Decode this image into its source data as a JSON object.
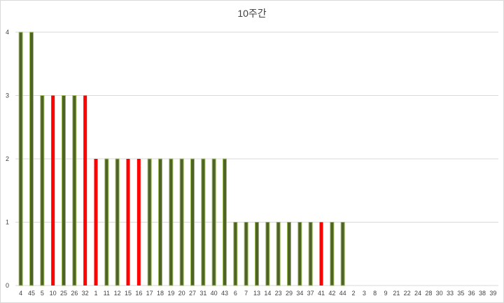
{
  "chart_data": {
    "type": "bar",
    "title": "10주간",
    "xlabel": "",
    "ylabel": "",
    "ylim": [
      0,
      4
    ],
    "yticks": [
      0,
      1,
      2,
      3,
      4
    ],
    "grid": true,
    "categories": [
      "4",
      "45",
      "5",
      "10",
      "25",
      "26",
      "32",
      "1",
      "11",
      "12",
      "15",
      "16",
      "17",
      "18",
      "19",
      "20",
      "27",
      "31",
      "40",
      "43",
      "6",
      "7",
      "13",
      "14",
      "23",
      "29",
      "34",
      "37",
      "41",
      "42",
      "44",
      "2",
      "3",
      "8",
      "9",
      "21",
      "22",
      "24",
      "28",
      "30",
      "33",
      "35",
      "36",
      "38",
      "39"
    ],
    "values": [
      4,
      4,
      3,
      3,
      3,
      3,
      3,
      2,
      2,
      2,
      2,
      2,
      2,
      2,
      2,
      2,
      2,
      2,
      2,
      2,
      1,
      1,
      1,
      1,
      1,
      1,
      1,
      1,
      1,
      1,
      1,
      0,
      0,
      0,
      0,
      0,
      0,
      0,
      0,
      0,
      0,
      0,
      0,
      0,
      0
    ],
    "highlighted": [
      "10",
      "32",
      "1",
      "15",
      "16",
      "41"
    ],
    "colors": {
      "bar_fill": "#4f6228",
      "bar_stroke": "#9bbb59",
      "highlight_fill": "#ff0000",
      "grid": "#d9d9d9",
      "text": "#404040"
    }
  }
}
